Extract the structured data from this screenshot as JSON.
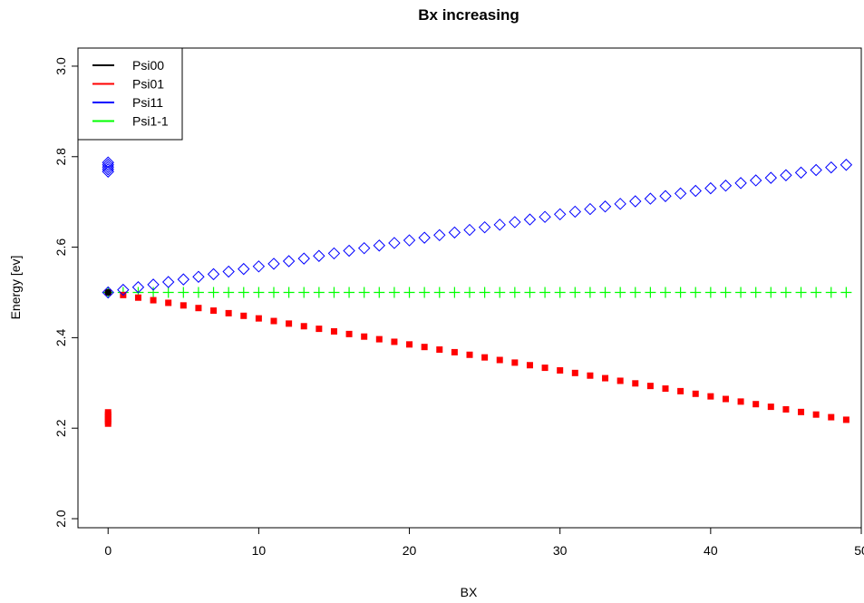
{
  "chart_data": {
    "type": "scatter",
    "title": "Bx increasing",
    "xlabel": "BX",
    "ylabel": "Energy [ev]",
    "xlim": [
      -2,
      50
    ],
    "ylim": [
      1.98,
      3.04
    ],
    "x_ticks": [
      0,
      10,
      20,
      30,
      40,
      50
    ],
    "y_ticks": [
      2.0,
      2.2,
      2.4,
      2.6,
      2.8,
      3.0
    ],
    "x_tick_labels": [
      "0",
      "10",
      "20",
      "30",
      "40",
      "50"
    ],
    "y_tick_labels": [
      "2.0",
      "2.2",
      "2.4",
      "2.6",
      "2.8",
      "3.0"
    ],
    "grid": false,
    "legend_position": "top-left",
    "series": [
      {
        "name": "Psi00",
        "color": "#000000",
        "marker": "circle",
        "points": [
          [
            0,
            2.5
          ]
        ]
      },
      {
        "name": "Psi01",
        "color": "#ff0000",
        "marker": "square",
        "points": [
          [
            0,
            2.21
          ],
          [
            0,
            2.215
          ],
          [
            0,
            2.22
          ],
          [
            0,
            2.225
          ],
          [
            0,
            2.23
          ],
          [
            0,
            2.235
          ],
          [
            0,
            2.5
          ],
          [
            1,
            2.4943
          ],
          [
            2,
            2.4885
          ],
          [
            3,
            2.4828
          ],
          [
            4,
            2.477
          ],
          [
            5,
            2.4713
          ],
          [
            6,
            2.4655
          ],
          [
            7,
            2.4598
          ],
          [
            8,
            2.4541
          ],
          [
            9,
            2.4483
          ],
          [
            10,
            2.4426
          ],
          [
            11,
            2.4368
          ],
          [
            12,
            2.4311
          ],
          [
            13,
            2.4253
          ],
          [
            14,
            2.4196
          ],
          [
            15,
            2.4139
          ],
          [
            16,
            2.4081
          ],
          [
            17,
            2.4024
          ],
          [
            18,
            2.3966
          ],
          [
            19,
            2.3909
          ],
          [
            20,
            2.3851
          ],
          [
            21,
            2.3794
          ],
          [
            22,
            2.3737
          ],
          [
            23,
            2.3679
          ],
          [
            24,
            2.3622
          ],
          [
            25,
            2.3564
          ],
          [
            26,
            2.3507
          ],
          [
            27,
            2.3449
          ],
          [
            28,
            2.3392
          ],
          [
            29,
            2.3335
          ],
          [
            30,
            2.3277
          ],
          [
            31,
            2.322
          ],
          [
            32,
            2.3162
          ],
          [
            33,
            2.3105
          ],
          [
            34,
            2.3047
          ],
          [
            35,
            2.299
          ],
          [
            36,
            2.2933
          ],
          [
            37,
            2.2875
          ],
          [
            38,
            2.2818
          ],
          [
            39,
            2.276
          ],
          [
            40,
            2.2703
          ],
          [
            41,
            2.2645
          ],
          [
            42,
            2.2588
          ],
          [
            43,
            2.2531
          ],
          [
            44,
            2.2473
          ],
          [
            45,
            2.2416
          ],
          [
            46,
            2.2358
          ],
          [
            47,
            2.2301
          ],
          [
            48,
            2.2243
          ],
          [
            49,
            2.2186
          ]
        ]
      },
      {
        "name": "Psi11",
        "color": "#0000ff",
        "marker": "diamond",
        "points": [
          [
            0,
            2.767
          ],
          [
            0,
            2.772
          ],
          [
            0,
            2.777
          ],
          [
            0,
            2.782
          ],
          [
            0,
            2.787
          ],
          [
            0,
            2.5
          ],
          [
            1,
            2.5058
          ],
          [
            2,
            2.5115
          ],
          [
            3,
            2.5173
          ],
          [
            4,
            2.523
          ],
          [
            5,
            2.5288
          ],
          [
            6,
            2.5345
          ],
          [
            7,
            2.5403
          ],
          [
            8,
            2.546
          ],
          [
            9,
            2.5518
          ],
          [
            10,
            2.5575
          ],
          [
            11,
            2.5633
          ],
          [
            12,
            2.5691
          ],
          [
            13,
            2.5748
          ],
          [
            14,
            2.5806
          ],
          [
            15,
            2.5863
          ],
          [
            16,
            2.5921
          ],
          [
            17,
            2.5978
          ],
          [
            18,
            2.6036
          ],
          [
            19,
            2.6093
          ],
          [
            20,
            2.6151
          ],
          [
            21,
            2.6209
          ],
          [
            22,
            2.6266
          ],
          [
            23,
            2.6324
          ],
          [
            24,
            2.6381
          ],
          [
            25,
            2.6439
          ],
          [
            26,
            2.6496
          ],
          [
            27,
            2.6554
          ],
          [
            28,
            2.6611
          ],
          [
            29,
            2.6669
          ],
          [
            30,
            2.6727
          ],
          [
            31,
            2.6784
          ],
          [
            32,
            2.6842
          ],
          [
            33,
            2.6899
          ],
          [
            34,
            2.6957
          ],
          [
            35,
            2.7014
          ],
          [
            36,
            2.7072
          ],
          [
            37,
            2.7129
          ],
          [
            38,
            2.7187
          ],
          [
            39,
            2.7244
          ],
          [
            40,
            2.7302
          ],
          [
            41,
            2.736
          ],
          [
            42,
            2.7417
          ],
          [
            43,
            2.7475
          ],
          [
            44,
            2.7532
          ],
          [
            45,
            2.759
          ],
          [
            46,
            2.7647
          ],
          [
            47,
            2.7705
          ],
          [
            48,
            2.7762
          ],
          [
            49,
            2.782
          ]
        ]
      },
      {
        "name": "Psi1-1",
        "color": "#00ff00",
        "marker": "plus",
        "points": [
          [
            0,
            2.5
          ],
          [
            1,
            2.5
          ],
          [
            2,
            2.5
          ],
          [
            3,
            2.5
          ],
          [
            4,
            2.5
          ],
          [
            5,
            2.5
          ],
          [
            6,
            2.5
          ],
          [
            7,
            2.5
          ],
          [
            8,
            2.5
          ],
          [
            9,
            2.5
          ],
          [
            10,
            2.5
          ],
          [
            11,
            2.5
          ],
          [
            12,
            2.5
          ],
          [
            13,
            2.5
          ],
          [
            14,
            2.5
          ],
          [
            15,
            2.5
          ],
          [
            16,
            2.5
          ],
          [
            17,
            2.5
          ],
          [
            18,
            2.5
          ],
          [
            19,
            2.5
          ],
          [
            20,
            2.5
          ],
          [
            21,
            2.5
          ],
          [
            22,
            2.5
          ],
          [
            23,
            2.5
          ],
          [
            24,
            2.5
          ],
          [
            25,
            2.5
          ],
          [
            26,
            2.5
          ],
          [
            27,
            2.5
          ],
          [
            28,
            2.5
          ],
          [
            29,
            2.5
          ],
          [
            30,
            2.5
          ],
          [
            31,
            2.5
          ],
          [
            32,
            2.5
          ],
          [
            33,
            2.5
          ],
          [
            34,
            2.5
          ],
          [
            35,
            2.5
          ],
          [
            36,
            2.5
          ],
          [
            37,
            2.5
          ],
          [
            38,
            2.5
          ],
          [
            39,
            2.5
          ],
          [
            40,
            2.5
          ],
          [
            41,
            2.5
          ],
          [
            42,
            2.5
          ],
          [
            43,
            2.5
          ],
          [
            44,
            2.5
          ],
          [
            45,
            2.5
          ],
          [
            46,
            2.5
          ],
          [
            47,
            2.5
          ],
          [
            48,
            2.5
          ],
          [
            49,
            2.5
          ]
        ]
      }
    ]
  }
}
